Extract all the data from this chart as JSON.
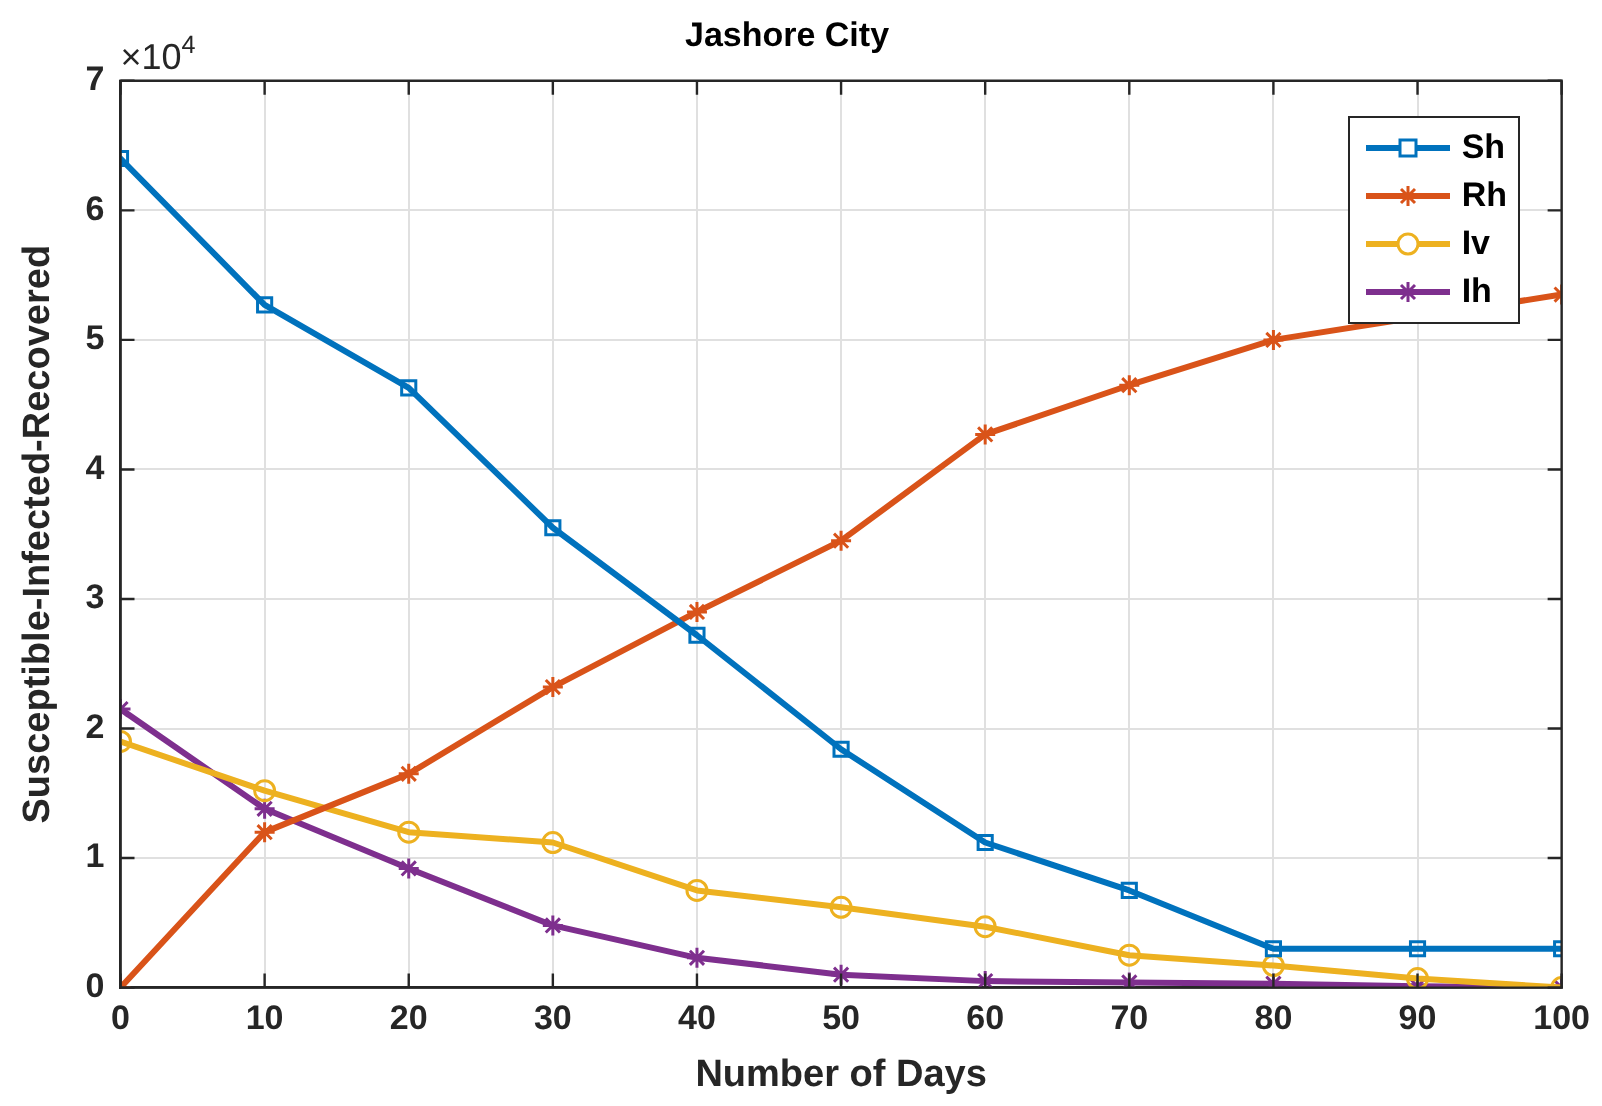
{
  "chart_data": {
    "type": "line",
    "title": "Jashore City",
    "xlabel": "Number of Days",
    "ylabel": "Susceptible-Infected-Recovered",
    "annotations": [
      "×10$^{4}$"
    ],
    "x": [
      0,
      10,
      20,
      30,
      40,
      50,
      60,
      70,
      80,
      90,
      100
    ],
    "series": [
      {
        "name": "Sh",
        "color": "#0072bd",
        "marker": "square",
        "values": [
          6.4,
          5.27,
          4.63,
          3.55,
          2.72,
          1.84,
          1.12,
          0.75,
          0.3,
          0.3,
          0.3
        ]
      },
      {
        "name": "Rh",
        "color": "#d95319",
        "marker": "cross",
        "values": [
          0,
          1.2,
          1.65,
          2.32,
          2.9,
          3.45,
          4.27,
          4.65,
          5.0,
          null,
          5.35
        ]
      },
      {
        "name": "Iv",
        "color": "#edb120",
        "marker": "circle",
        "values": [
          1.9,
          1.52,
          1.2,
          1.12,
          0.75,
          0.62,
          0.47,
          0.25,
          0.17,
          0.07,
          0
        ]
      },
      {
        "name": "Ih",
        "color": "#7e2f8e",
        "marker": "cross",
        "values": [
          2.15,
          1.38,
          0.92,
          0.48,
          0.23,
          0.1,
          0.05,
          0.04,
          0.03,
          0.01,
          0
        ]
      }
    ],
    "xlim": [
      0,
      100
    ],
    "xticks": [
      0,
      10,
      20,
      30,
      40,
      50,
      60,
      70,
      80,
      90,
      100
    ],
    "ylim": [
      0,
      7
    ],
    "yticks": [
      0,
      1,
      2,
      3,
      4,
      5,
      6,
      7
    ],
    "grid": true,
    "legend": "top right",
    "line_style": "solid"
  }
}
